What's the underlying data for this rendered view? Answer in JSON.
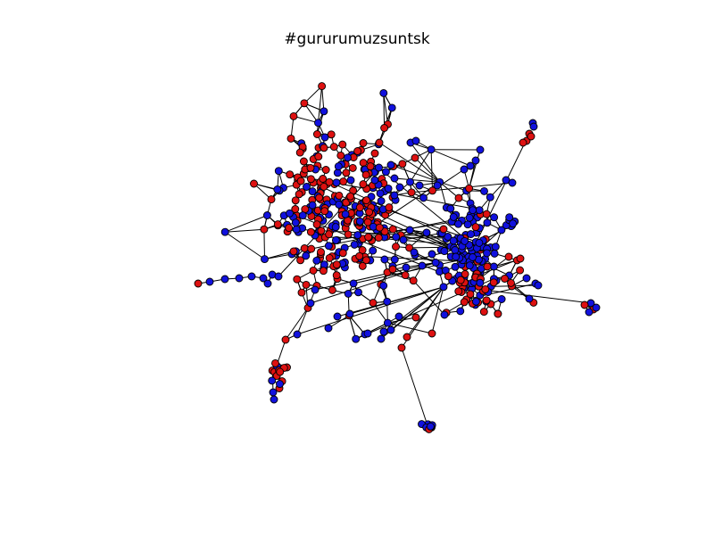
{
  "title": "#gururumuzsuntsk",
  "colors": {
    "background": "#ffffff",
    "edge": "#000000",
    "node_group_a": "#dd1111",
    "node_group_b": "#1111dd",
    "node_outline": "#000000"
  }
}
